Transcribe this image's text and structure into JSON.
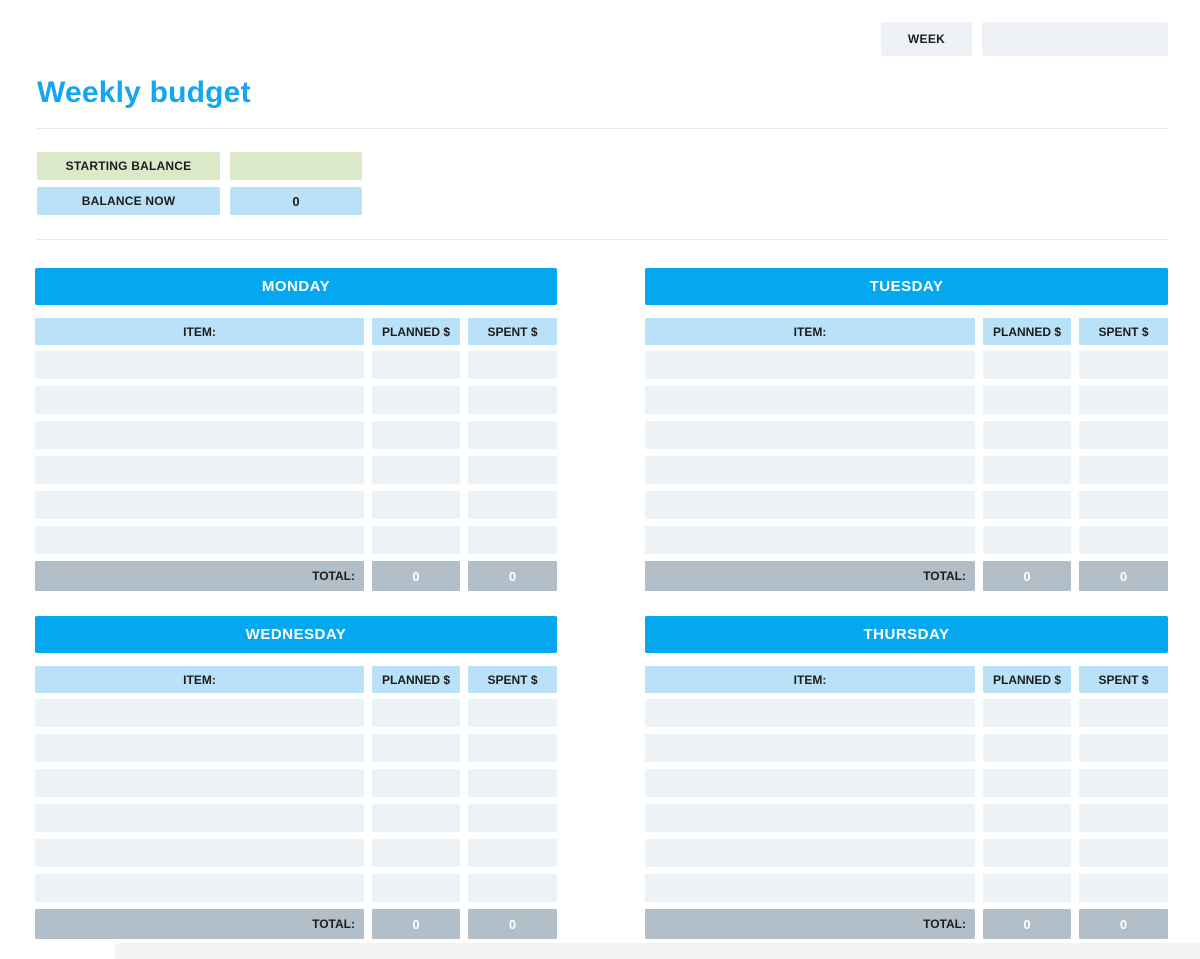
{
  "header": {
    "week_label": "WEEK",
    "week_value": ""
  },
  "title": "Weekly budget",
  "balance": {
    "starting_label": "STARTING BALANCE",
    "starting_value": "",
    "now_label": "BALANCE NOW",
    "now_value": "0"
  },
  "table_columns": {
    "item": "ITEM:",
    "planned": "PLANNED $",
    "spent": "SPENT $"
  },
  "total_label": "TOTAL:",
  "days": [
    {
      "name": "MONDAY",
      "rows": [
        {
          "item": "",
          "planned": "",
          "spent": ""
        },
        {
          "item": "",
          "planned": "",
          "spent": ""
        },
        {
          "item": "",
          "planned": "",
          "spent": ""
        },
        {
          "item": "",
          "planned": "",
          "spent": ""
        },
        {
          "item": "",
          "planned": "",
          "spent": ""
        },
        {
          "item": "",
          "planned": "",
          "spent": ""
        }
      ],
      "total_planned": "0",
      "total_spent": "0"
    },
    {
      "name": "TUESDAY",
      "rows": [
        {
          "item": "",
          "planned": "",
          "spent": ""
        },
        {
          "item": "",
          "planned": "",
          "spent": ""
        },
        {
          "item": "",
          "planned": "",
          "spent": ""
        },
        {
          "item": "",
          "planned": "",
          "spent": ""
        },
        {
          "item": "",
          "planned": "",
          "spent": ""
        },
        {
          "item": "",
          "planned": "",
          "spent": ""
        }
      ],
      "total_planned": "0",
      "total_spent": "0"
    },
    {
      "name": "WEDNESDAY",
      "rows": [
        {
          "item": "",
          "planned": "",
          "spent": ""
        },
        {
          "item": "",
          "planned": "",
          "spent": ""
        },
        {
          "item": "",
          "planned": "",
          "spent": ""
        },
        {
          "item": "",
          "planned": "",
          "spent": ""
        },
        {
          "item": "",
          "planned": "",
          "spent": ""
        },
        {
          "item": "",
          "planned": "",
          "spent": ""
        }
      ],
      "total_planned": "0",
      "total_spent": "0"
    },
    {
      "name": "THURSDAY",
      "rows": [
        {
          "item": "",
          "planned": "",
          "spent": ""
        },
        {
          "item": "",
          "planned": "",
          "spent": ""
        },
        {
          "item": "",
          "planned": "",
          "spent": ""
        },
        {
          "item": "",
          "planned": "",
          "spent": ""
        },
        {
          "item": "",
          "planned": "",
          "spent": ""
        },
        {
          "item": "",
          "planned": "",
          "spent": ""
        }
      ],
      "total_planned": "0",
      "total_spent": "0"
    }
  ],
  "colors": {
    "accent_blue": "#04a7f0",
    "title_blue": "#14a6ee",
    "light_blue": "#b9e2f9",
    "pale_green": "#dbe9c9",
    "row_gray": "#edf2f6",
    "total_gray": "#b2bfc9",
    "box_gray": "#eef2f6"
  }
}
